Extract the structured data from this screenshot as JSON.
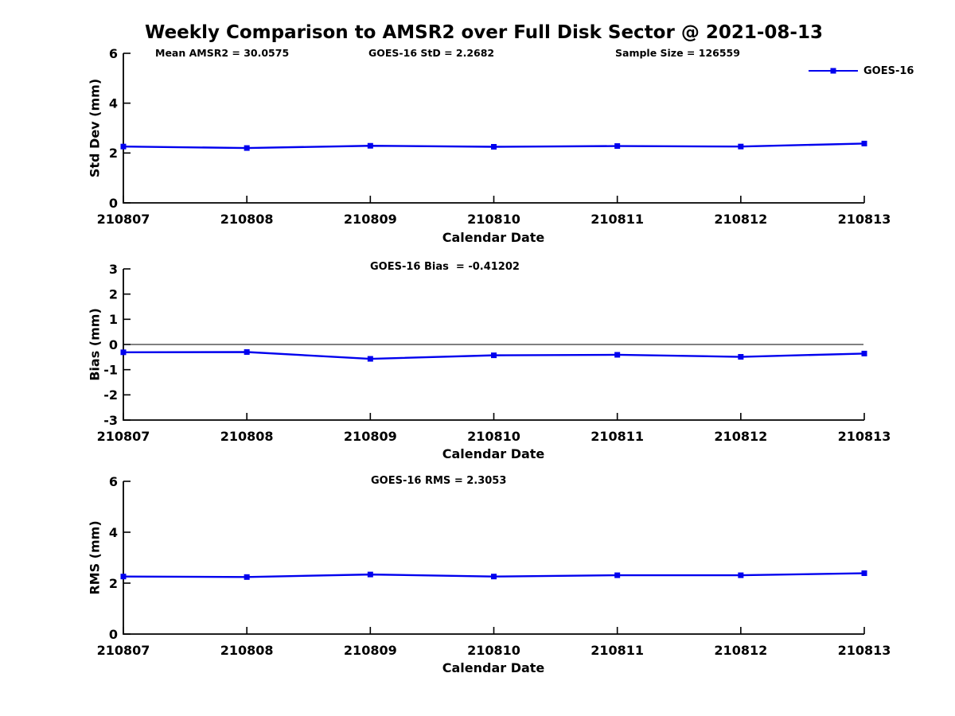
{
  "title": "Weekly Comparison to AMSR2 over Full Disk Sector @ 2021-08-13",
  "stats": {
    "mean_amsr2": "Mean AMSR2 = 30.0575",
    "goes16_std": "GOES-16 StD = 2.2682",
    "sample_size": "Sample Size = 126559"
  },
  "legend": {
    "label": "GOES-16",
    "position": "top-right",
    "marker": "filled-square"
  },
  "colors": {
    "series": "#0000EE",
    "axis": "#000000",
    "background": "#ffffff"
  },
  "chart_data": [
    {
      "type": "line",
      "title": "",
      "series_name": "GOES-16",
      "categories": [
        "210807",
        "210808",
        "210809",
        "210810",
        "210811",
        "210812",
        "210813"
      ],
      "values": [
        2.26,
        2.2,
        2.29,
        2.25,
        2.28,
        2.26,
        2.38
      ],
      "xlabel": "Calendar Date",
      "ylabel": "Std Dev (mm)",
      "ylim": [
        0,
        6
      ],
      "yticks": [
        0,
        2,
        4,
        6
      ],
      "zero_line": false,
      "grid": false
    },
    {
      "type": "line",
      "title": "GOES-16 Bias  = -0.41202",
      "series_name": "GOES-16",
      "categories": [
        "210807",
        "210808",
        "210809",
        "210810",
        "210811",
        "210812",
        "210813"
      ],
      "values": [
        -0.31,
        -0.3,
        -0.57,
        -0.43,
        -0.41,
        -0.49,
        -0.36
      ],
      "xlabel": "Calendar Date",
      "ylabel": "Bias (mm)",
      "ylim": [
        -3,
        3
      ],
      "yticks": [
        -3,
        -2,
        -1,
        0,
        1,
        2,
        3
      ],
      "zero_line": true,
      "grid": false
    },
    {
      "type": "line",
      "title": "GOES-16 RMS = 2.3053",
      "series_name": "GOES-16",
      "categories": [
        "210807",
        "210808",
        "210809",
        "210810",
        "210811",
        "210812",
        "210813"
      ],
      "values": [
        2.26,
        2.24,
        2.34,
        2.26,
        2.31,
        2.31,
        2.39
      ],
      "xlabel": "Calendar Date",
      "ylabel": "RMS (mm)",
      "ylim": [
        0,
        6
      ],
      "yticks": [
        0,
        2,
        4,
        6
      ],
      "zero_line": false,
      "grid": false
    }
  ]
}
